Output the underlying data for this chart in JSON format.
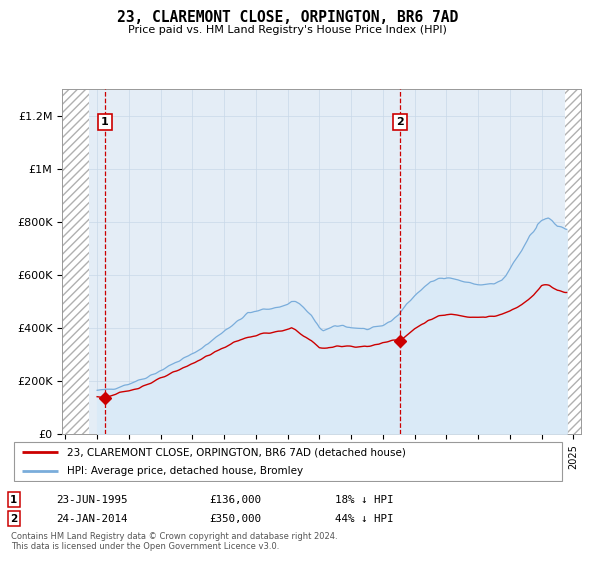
{
  "title": "23, CLAREMONT CLOSE, ORPINGTON, BR6 7AD",
  "subtitle": "Price paid vs. HM Land Registry's House Price Index (HPI)",
  "legend_line1": "23, CLAREMONT CLOSE, ORPINGTON, BR6 7AD (detached house)",
  "legend_line2": "HPI: Average price, detached house, Bromley",
  "footnote": "Contains HM Land Registry data © Crown copyright and database right 2024.\nThis data is licensed under the Open Government Licence v3.0.",
  "annotation1_date": "23-JUN-1995",
  "annotation1_price": "£136,000",
  "annotation1_hpi": "18% ↓ HPI",
  "annotation2_date": "24-JAN-2014",
  "annotation2_price": "£350,000",
  "annotation2_hpi": "44% ↓ HPI",
  "price_paid_color": "#cc0000",
  "hpi_color": "#7aaddb",
  "hpi_fill_color": "#daeaf7",
  "marker_color": "#cc0000",
  "vline_color": "#cc0000",
  "annotation_box_color": "#cc0000",
  "grid_color": "#c8d8e8",
  "bg_color": "#e4edf6",
  "ylim": [
    0,
    1300000
  ],
  "yticks": [
    0,
    200000,
    400000,
    600000,
    800000,
    1000000,
    1200000
  ],
  "ytick_labels": [
    "£0",
    "£200K",
    "£400K",
    "£600K",
    "£800K",
    "£1M",
    "£1.2M"
  ],
  "sale1_x": 1995.47,
  "sale1_y": 136000,
  "sale2_x": 2014.07,
  "sale2_y": 350000,
  "xlim_left": 1992.8,
  "xlim_right": 2025.5,
  "hatch_right_start": 2024.5
}
